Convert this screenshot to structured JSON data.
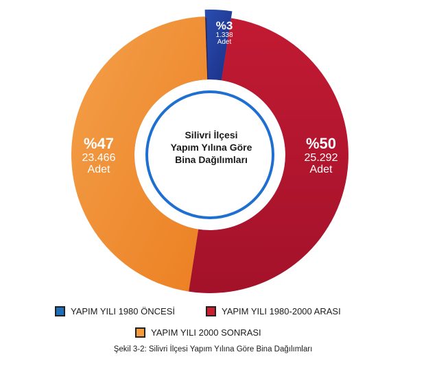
{
  "chart_data": {
    "type": "pie",
    "center_title_lines": [
      "Silivri İlçesi",
      "Yapım Yılına Göre",
      "Bina Dağılımları"
    ],
    "slices": [
      {
        "legend": "YAPIM YILI 1980 ÖNCESİ",
        "percent": 3,
        "percent_label": "%3",
        "count_label": "1.338",
        "unit_label": "Adet",
        "color": "#1f3f99"
      },
      {
        "legend": "YAPIM YILI 1980-2000 ARASI",
        "percent": 50,
        "percent_label": "%50",
        "count_label": "25.292",
        "unit_label": "Adet",
        "color": "#b8182e"
      },
      {
        "legend": "YAPIM YILI 2000 SONRASI",
        "percent": 47,
        "percent_label": "%47",
        "count_label": "23.466",
        "unit_label": "Adet",
        "color": "#f08a2a"
      }
    ],
    "legend_swatch_colors": [
      "#1f6fb8",
      "#c8202f",
      "#f39a3a"
    ],
    "ring_accent_color": "#1f6fd0"
  },
  "caption": "Şekil 3-2: Silivri İlçesi Yapım Yılına Göre Bina Dağılımları"
}
